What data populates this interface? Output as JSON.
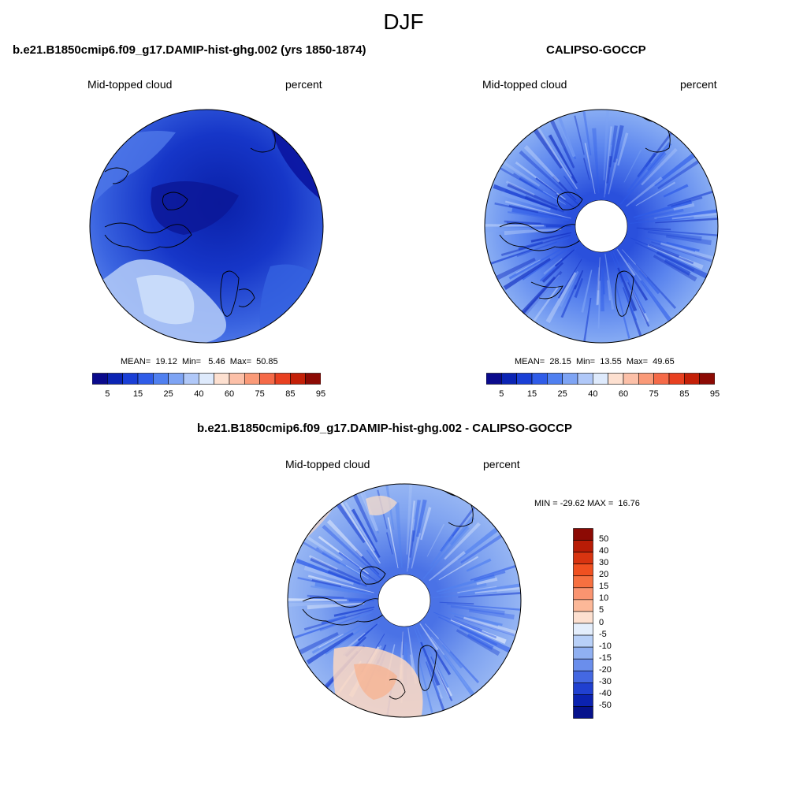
{
  "title": "DJF",
  "panels": [
    {
      "title": "b.e21.B1850cmip6.f09_g17.DAMIP-hist-ghg.002 (yrs 1850-1874)",
      "left_label": "Mid-topped cloud",
      "right_label": "percent",
      "stats": "MEAN=  19.12  Min=   5.46  Max=  50.85"
    },
    {
      "title": "CALIPSO-GOCCP",
      "left_label": "Mid-topped cloud",
      "right_label": "percent",
      "stats": "MEAN=  28.15  Min=  13.55  Max=  49.65"
    },
    {
      "title": "b.e21.B1850cmip6.f09_g17.DAMIP-hist-ghg.002 - CALIPSO-GOCCP",
      "left_label": "Mid-topped cloud",
      "right_label": "percent",
      "stats": "MIN = -29.62 MAX =  16.76"
    }
  ],
  "colorbar_h": {
    "labels": [
      "5",
      "15",
      "25",
      "40",
      "60",
      "75",
      "85",
      "95"
    ],
    "colors": [
      "#0a0a8c",
      "#0b24b4",
      "#1a3fd6",
      "#2f5ce8",
      "#5080f0",
      "#7ea4f4",
      "#b0c8f8",
      "#deeafc",
      "#fde0d0",
      "#fcc0a8",
      "#fa9a78",
      "#f56a48",
      "#e84020",
      "#c42008",
      "#8c0a04"
    ]
  },
  "colorbar_v": {
    "labels": [
      "50",
      "40",
      "30",
      "20",
      "15",
      "10",
      "5",
      "0",
      "-5",
      "-10",
      "-15",
      "-20",
      "-30",
      "-40",
      "-50"
    ],
    "colors": [
      "#8c0a04",
      "#b81c06",
      "#d83410",
      "#f05020",
      "#f77040",
      "#fa9470",
      "#fcb898",
      "#fde0d0",
      "#e4eefc",
      "#b8d0f8",
      "#90b0f2",
      "#6a8eec",
      "#4468e2",
      "#2040d0",
      "#0b22b0",
      "#06128c"
    ]
  }
}
